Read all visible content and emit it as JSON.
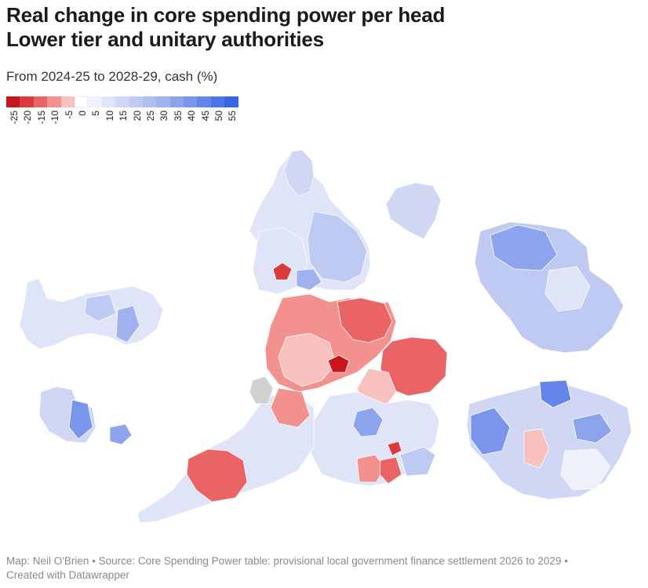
{
  "title_line1": "Real change in core spending power per head",
  "title_line2": "Lower tier and unitary authorities",
  "subtitle": "From 2024-25 to 2028-29, cash (%)",
  "legend": {
    "ticks": [
      "-25",
      "-20",
      "-15",
      "-10",
      "-5",
      "0",
      "5",
      "10",
      "15",
      "20",
      "25",
      "30",
      "35",
      "40",
      "45",
      "50",
      "55"
    ],
    "colors": [
      "#c8161d",
      "#db3a3c",
      "#ea6465",
      "#f3918f",
      "#f8c1bd",
      "#ffffff",
      "#eef0fb",
      "#dfe4f8",
      "#cfd7f5",
      "#bfcaf3",
      "#afbef1",
      "#9fb1ef",
      "#8ca3ee",
      "#7995ec",
      "#6486ea",
      "#4d76e8",
      "#3565e5"
    ]
  },
  "map": {
    "missing_color": "#d0d0d0"
  },
  "footer_line1": "Map: Neil O'Brien • Source: Core Spending Power table: provisional local government finance settlement 2026 to 2029 •",
  "footer_line2": "Created with Datawrapper"
}
